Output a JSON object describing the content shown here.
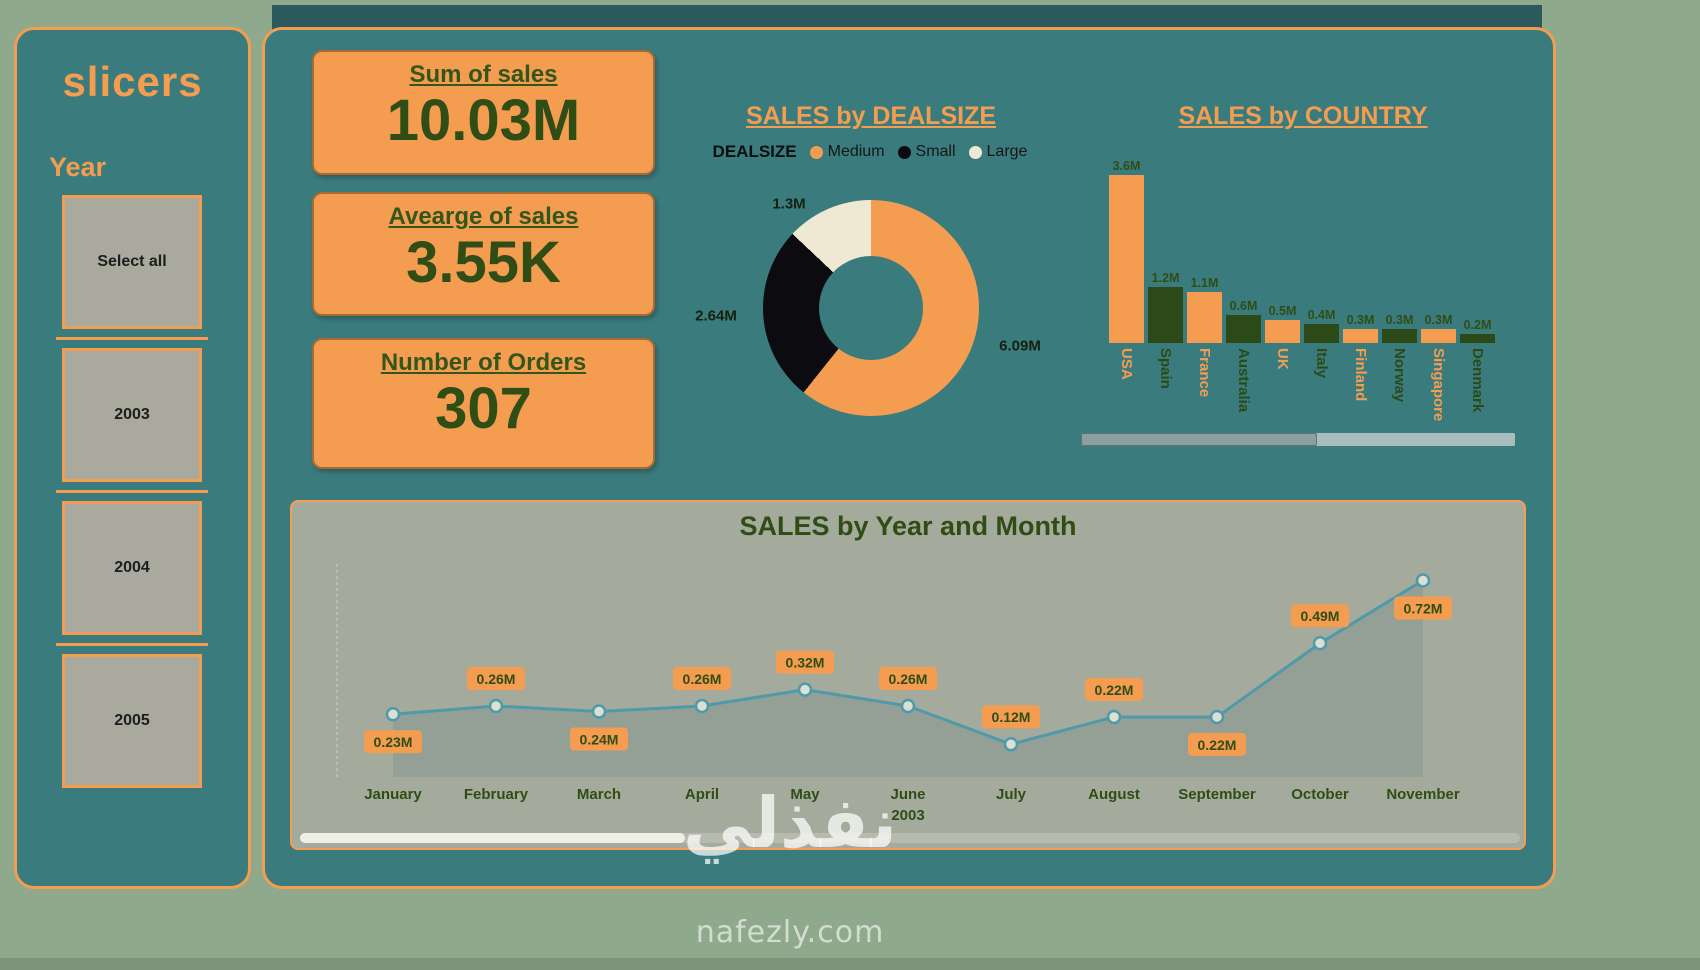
{
  "colors": {
    "background": "#8FA98C",
    "panel_teal": "#3A7C7D",
    "orange": "#F49D51",
    "dark_green": "#2C4A17",
    "value_green": "#2F4D15",
    "slice_black": "#0B0B10",
    "slice_cream": "#EFE9D4",
    "line": "#4E9AAB",
    "button_gray": "#A9A99E"
  },
  "slicers": {
    "title": "slicers",
    "field_label": "Year",
    "options": [
      "Select all",
      "2003",
      "2004",
      "2005"
    ]
  },
  "kpis": [
    {
      "title": "Sum of sales",
      "value": "10.03M"
    },
    {
      "title": "Avearge of sales",
      "value": "3.55K"
    },
    {
      "title": "Number of Orders",
      "value": "307"
    }
  ],
  "chart_data": [
    {
      "type": "pie",
      "title": "SALES by DEALSIZE",
      "legend_title": "DEALSIZE",
      "legend_position": "top",
      "slices": [
        {
          "label": "Medium",
          "value": 6.09,
          "display": "6.09M",
          "color": "#F49D51"
        },
        {
          "label": "Small",
          "value": 2.64,
          "display": "2.64M",
          "color": "#0B0B10"
        },
        {
          "label": "Large",
          "value": 1.3,
          "display": "1.3M",
          "color": "#EFE9D4"
        }
      ],
      "total_display": "10.03M"
    },
    {
      "type": "bar",
      "title": "SALES by COUNTRY",
      "categories": [
        "USA",
        "Spain",
        "France",
        "Australia",
        "UK",
        "Italy",
        "Finland",
        "Norway",
        "Singapore",
        "Denmark"
      ],
      "values": [
        3.6,
        1.2,
        1.1,
        0.6,
        0.5,
        0.4,
        0.3,
        0.3,
        0.3,
        0.2
      ],
      "labels": [
        "3.6M",
        "1.2M",
        "1.1M",
        "0.6M",
        "0.5M",
        "0.4M",
        "0.3M",
        "0.3M",
        "0.3M",
        "0.2M"
      ],
      "ylim": [
        0,
        4
      ],
      "unit": "M",
      "bar_colors_alternate": [
        "#F49D51",
        "#2C4A17"
      ],
      "has_scrollbar": true
    },
    {
      "type": "line",
      "title": "SALES by Year and Month",
      "categories": [
        "January",
        "February",
        "March",
        "April",
        "May",
        "June",
        "July",
        "August",
        "September",
        "October",
        "November"
      ],
      "year_label": "2003",
      "year_label_under": "June",
      "values": [
        0.23,
        0.26,
        0.24,
        0.26,
        0.32,
        0.26,
        0.12,
        0.22,
        0.22,
        0.49,
        0.72
      ],
      "labels": [
        "0.23M",
        "0.26M",
        "0.24M",
        "0.26M",
        "0.32M",
        "0.26M",
        "0.12M",
        "0.22M",
        "0.22M",
        "0.49M",
        "0.72M"
      ],
      "label_positions": [
        "below",
        "above",
        "below",
        "above",
        "above",
        "above",
        "above",
        "above",
        "below",
        "above",
        "below"
      ],
      "ylim": [
        0,
        0.8
      ],
      "unit": "M",
      "grid": false,
      "has_scrollbar": true
    }
  ],
  "watermark": {
    "logo_text": "نفذلي",
    "site": "nafezly.com"
  }
}
